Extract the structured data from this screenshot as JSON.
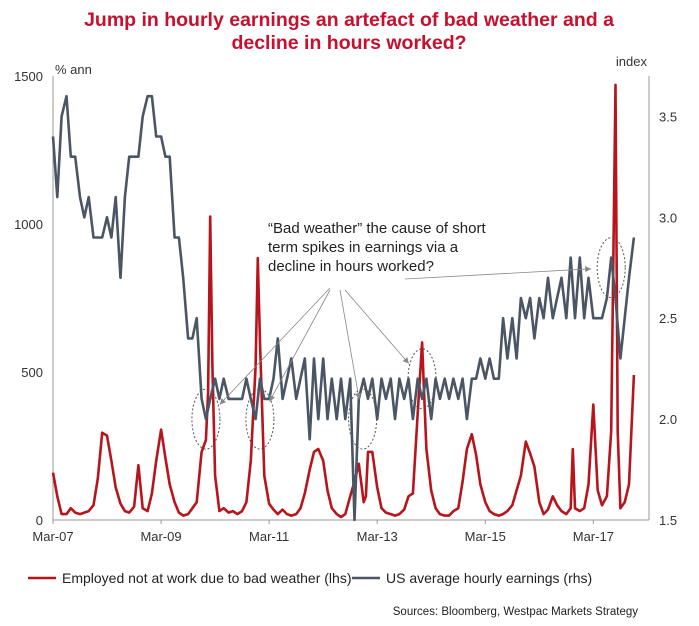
{
  "chart_data": {
    "type": "line",
    "title": "Jump in hourly earnings an artefact of bad weather and a decline in hours worked?",
    "title_lines": [
      "Jump in hourly earnings an artefact of bad weather and a",
      "decline in hours worked?"
    ],
    "title_color": "#C8102E",
    "x_tick_labels": [
      "Mar-07",
      "Mar-09",
      "Mar-11",
      "Mar-13",
      "Mar-15",
      "Mar-17"
    ],
    "x_tick_dates": [
      2007.17,
      2009.17,
      2011.17,
      2013.17,
      2015.17,
      2017.17
    ],
    "xlim": [
      2007.17,
      2018.2
    ],
    "y_left": {
      "unit_label": "% ann",
      "lim": [
        0,
        1500
      ],
      "ticks": [
        0,
        500,
        1000,
        1500
      ]
    },
    "y_right": {
      "unit_label": "index",
      "lim": [
        1.5,
        3.7
      ],
      "ticks": [
        1.5,
        2.0,
        2.5,
        3.0,
        3.5
      ],
      "tick_labels": [
        "1.5",
        "2.0",
        "2.5",
        "3.0",
        "3.5"
      ]
    },
    "grid": false,
    "legend_position": "bottom",
    "series": [
      {
        "name": "Employed not at work due to bad weather (lhs)",
        "axis": "left",
        "color": "#B8141C",
        "points": [
          [
            2007.17,
            160
          ],
          [
            2007.25,
            80
          ],
          [
            2007.33,
            20
          ],
          [
            2007.42,
            20
          ],
          [
            2007.5,
            40
          ],
          [
            2007.58,
            25
          ],
          [
            2007.67,
            20
          ],
          [
            2007.75,
            25
          ],
          [
            2007.83,
            30
          ],
          [
            2007.92,
            50
          ],
          [
            2008.0,
            140
          ],
          [
            2008.08,
            295
          ],
          [
            2008.17,
            285
          ],
          [
            2008.25,
            200
          ],
          [
            2008.33,
            110
          ],
          [
            2008.42,
            55
          ],
          [
            2008.5,
            30
          ],
          [
            2008.58,
            25
          ],
          [
            2008.67,
            45
          ],
          [
            2008.75,
            185
          ],
          [
            2008.83,
            40
          ],
          [
            2008.92,
            30
          ],
          [
            2009.0,
            90
          ],
          [
            2009.08,
            200
          ],
          [
            2009.17,
            305
          ],
          [
            2009.25,
            210
          ],
          [
            2009.33,
            120
          ],
          [
            2009.42,
            60
          ],
          [
            2009.5,
            25
          ],
          [
            2009.58,
            15
          ],
          [
            2009.67,
            20
          ],
          [
            2009.75,
            40
          ],
          [
            2009.83,
            60
          ],
          [
            2009.92,
            230
          ],
          [
            2010.0,
            270
          ],
          [
            2010.04,
            430
          ],
          [
            2010.08,
            1025
          ],
          [
            2010.12,
            520
          ],
          [
            2010.17,
            150
          ],
          [
            2010.25,
            30
          ],
          [
            2010.33,
            40
          ],
          [
            2010.42,
            25
          ],
          [
            2010.5,
            30
          ],
          [
            2010.58,
            20
          ],
          [
            2010.67,
            30
          ],
          [
            2010.75,
            60
          ],
          [
            2010.83,
            200
          ],
          [
            2010.92,
            520
          ],
          [
            2010.96,
            885
          ],
          [
            2011.0,
            600
          ],
          [
            2011.08,
            150
          ],
          [
            2011.17,
            55
          ],
          [
            2011.25,
            35
          ],
          [
            2011.33,
            20
          ],
          [
            2011.42,
            35
          ],
          [
            2011.5,
            20
          ],
          [
            2011.58,
            15
          ],
          [
            2011.67,
            20
          ],
          [
            2011.75,
            40
          ],
          [
            2011.83,
            90
          ],
          [
            2011.92,
            170
          ],
          [
            2012.0,
            230
          ],
          [
            2012.08,
            240
          ],
          [
            2012.17,
            200
          ],
          [
            2012.25,
            100
          ],
          [
            2012.33,
            40
          ],
          [
            2012.42,
            20
          ],
          [
            2012.5,
            10
          ],
          [
            2012.58,
            20
          ],
          [
            2012.67,
            80
          ],
          [
            2012.75,
            130
          ],
          [
            2012.83,
            190
          ],
          [
            2012.92,
            60
          ],
          [
            2012.96,
            80
          ],
          [
            2013.0,
            230
          ],
          [
            2013.08,
            230
          ],
          [
            2013.17,
            110
          ],
          [
            2013.25,
            40
          ],
          [
            2013.33,
            25
          ],
          [
            2013.42,
            20
          ],
          [
            2013.5,
            15
          ],
          [
            2013.58,
            20
          ],
          [
            2013.67,
            35
          ],
          [
            2013.75,
            80
          ],
          [
            2013.83,
            90
          ],
          [
            2013.92,
            360
          ],
          [
            2014.0,
            600
          ],
          [
            2014.04,
            420
          ],
          [
            2014.08,
            240
          ],
          [
            2014.17,
            100
          ],
          [
            2014.25,
            40
          ],
          [
            2014.33,
            20
          ],
          [
            2014.42,
            15
          ],
          [
            2014.5,
            15
          ],
          [
            2014.58,
            30
          ],
          [
            2014.67,
            40
          ],
          [
            2014.75,
            130
          ],
          [
            2014.83,
            240
          ],
          [
            2014.92,
            290
          ],
          [
            2015.0,
            220
          ],
          [
            2015.08,
            120
          ],
          [
            2015.17,
            60
          ],
          [
            2015.25,
            30
          ],
          [
            2015.33,
            20
          ],
          [
            2015.42,
            15
          ],
          [
            2015.5,
            20
          ],
          [
            2015.58,
            30
          ],
          [
            2015.67,
            50
          ],
          [
            2015.75,
            100
          ],
          [
            2015.83,
            150
          ],
          [
            2015.92,
            265
          ],
          [
            2016.0,
            225
          ],
          [
            2016.08,
            180
          ],
          [
            2016.17,
            60
          ],
          [
            2016.25,
            20
          ],
          [
            2016.33,
            35
          ],
          [
            2016.42,
            80
          ],
          [
            2016.5,
            50
          ],
          [
            2016.58,
            30
          ],
          [
            2016.67,
            20
          ],
          [
            2016.75,
            40
          ],
          [
            2016.79,
            240
          ],
          [
            2016.83,
            40
          ],
          [
            2016.92,
            30
          ],
          [
            2017.0,
            40
          ],
          [
            2017.08,
            120
          ],
          [
            2017.17,
            390
          ],
          [
            2017.25,
            100
          ],
          [
            2017.33,
            50
          ],
          [
            2017.42,
            80
          ],
          [
            2017.5,
            300
          ],
          [
            2017.58,
            1470
          ],
          [
            2017.62,
            300
          ],
          [
            2017.67,
            40
          ],
          [
            2017.75,
            60
          ],
          [
            2017.83,
            120
          ],
          [
            2017.92,
            490
          ]
        ]
      },
      {
        "name": "US average hourly earnings (rhs)",
        "axis": "right",
        "color": "#4A5665",
        "points": [
          [
            2007.17,
            3.4
          ],
          [
            2007.25,
            3.1
          ],
          [
            2007.33,
            3.5
          ],
          [
            2007.42,
            3.6
          ],
          [
            2007.5,
            3.3
          ],
          [
            2007.58,
            3.3
          ],
          [
            2007.67,
            3.1
          ],
          [
            2007.75,
            3.0
          ],
          [
            2007.83,
            3.1
          ],
          [
            2007.92,
            2.9
          ],
          [
            2008.0,
            2.9
          ],
          [
            2008.08,
            2.9
          ],
          [
            2008.17,
            3.0
          ],
          [
            2008.25,
            2.9
          ],
          [
            2008.33,
            3.1
          ],
          [
            2008.42,
            2.7
          ],
          [
            2008.5,
            3.1
          ],
          [
            2008.58,
            3.3
          ],
          [
            2008.67,
            3.3
          ],
          [
            2008.75,
            3.3
          ],
          [
            2008.83,
            3.5
          ],
          [
            2008.92,
            3.6
          ],
          [
            2009.0,
            3.6
          ],
          [
            2009.08,
            3.4
          ],
          [
            2009.17,
            3.4
          ],
          [
            2009.25,
            3.3
          ],
          [
            2009.33,
            3.3
          ],
          [
            2009.42,
            2.9
          ],
          [
            2009.5,
            2.9
          ],
          [
            2009.58,
            2.7
          ],
          [
            2009.67,
            2.4
          ],
          [
            2009.75,
            2.4
          ],
          [
            2009.83,
            2.5
          ],
          [
            2009.92,
            2.1
          ],
          [
            2010.0,
            2.0
          ],
          [
            2010.08,
            2.1
          ],
          [
            2010.17,
            2.2
          ],
          [
            2010.25,
            2.1
          ],
          [
            2010.33,
            2.2
          ],
          [
            2010.42,
            2.1
          ],
          [
            2010.5,
            2.1
          ],
          [
            2010.58,
            2.1
          ],
          [
            2010.67,
            2.1
          ],
          [
            2010.75,
            2.2
          ],
          [
            2010.83,
            2.1
          ],
          [
            2010.92,
            2.0
          ],
          [
            2011.0,
            2.2
          ],
          [
            2011.08,
            2.1
          ],
          [
            2011.17,
            2.1
          ],
          [
            2011.25,
            2.2
          ],
          [
            2011.33,
            2.4
          ],
          [
            2011.42,
            2.1
          ],
          [
            2011.5,
            2.2
          ],
          [
            2011.58,
            2.3
          ],
          [
            2011.67,
            2.1
          ],
          [
            2011.75,
            2.2
          ],
          [
            2011.83,
            2.3
          ],
          [
            2011.92,
            1.9
          ],
          [
            2012.0,
            2.3
          ],
          [
            2012.08,
            2.0
          ],
          [
            2012.17,
            2.3
          ],
          [
            2012.25,
            2.0
          ],
          [
            2012.33,
            2.2
          ],
          [
            2012.42,
            2.0
          ],
          [
            2012.5,
            2.2
          ],
          [
            2012.58,
            2.0
          ],
          [
            2012.67,
            2.2
          ],
          [
            2012.75,
            1.5
          ],
          [
            2012.83,
            2.1
          ],
          [
            2012.92,
            2.2
          ],
          [
            2013.0,
            2.1
          ],
          [
            2013.08,
            2.2
          ],
          [
            2013.17,
            2.0
          ],
          [
            2013.25,
            2.2
          ],
          [
            2013.33,
            2.1
          ],
          [
            2013.42,
            2.2
          ],
          [
            2013.5,
            2.0
          ],
          [
            2013.58,
            2.2
          ],
          [
            2013.67,
            2.1
          ],
          [
            2013.75,
            2.2
          ],
          [
            2013.83,
            2.0
          ],
          [
            2013.92,
            2.2
          ],
          [
            2014.0,
            2.1
          ],
          [
            2014.08,
            2.2
          ],
          [
            2014.17,
            2.0
          ],
          [
            2014.25,
            2.2
          ],
          [
            2014.33,
            2.1
          ],
          [
            2014.42,
            2.2
          ],
          [
            2014.5,
            2.1
          ],
          [
            2014.58,
            2.2
          ],
          [
            2014.67,
            2.1
          ],
          [
            2014.75,
            2.2
          ],
          [
            2014.83,
            2.0
          ],
          [
            2014.92,
            2.2
          ],
          [
            2015.0,
            2.2
          ],
          [
            2015.08,
            2.3
          ],
          [
            2015.17,
            2.2
          ],
          [
            2015.25,
            2.3
          ],
          [
            2015.33,
            2.2
          ],
          [
            2015.42,
            2.2
          ],
          [
            2015.5,
            2.5
          ],
          [
            2015.58,
            2.3
          ],
          [
            2015.67,
            2.5
          ],
          [
            2015.75,
            2.3
          ],
          [
            2015.83,
            2.6
          ],
          [
            2015.92,
            2.5
          ],
          [
            2016.0,
            2.6
          ],
          [
            2016.08,
            2.4
          ],
          [
            2016.17,
            2.6
          ],
          [
            2016.25,
            2.5
          ],
          [
            2016.33,
            2.7
          ],
          [
            2016.42,
            2.5
          ],
          [
            2016.5,
            2.6
          ],
          [
            2016.58,
            2.7
          ],
          [
            2016.67,
            2.5
          ],
          [
            2016.75,
            2.8
          ],
          [
            2016.83,
            2.5
          ],
          [
            2016.92,
            2.8
          ],
          [
            2017.0,
            2.5
          ],
          [
            2017.08,
            2.7
          ],
          [
            2017.17,
            2.5
          ],
          [
            2017.25,
            2.5
          ],
          [
            2017.33,
            2.5
          ],
          [
            2017.42,
            2.6
          ],
          [
            2017.5,
            2.8
          ],
          [
            2017.58,
            2.6
          ],
          [
            2017.67,
            2.3
          ],
          [
            2017.75,
            2.5
          ],
          [
            2017.83,
            2.7
          ],
          [
            2017.92,
            2.9
          ]
        ]
      }
    ],
    "annotation": {
      "lines": [
        "“Bad weather” the cause of short",
        "term spikes in earnings via a",
        "decline in hours worked?"
      ],
      "targets": [
        [
          2010.0,
          2.0
        ],
        [
          2011.0,
          2.0
        ],
        [
          2012.9,
          2.0
        ],
        [
          2014.0,
          2.2
        ],
        [
          2017.5,
          2.75
        ]
      ]
    },
    "source": "Sources: Bloomberg, Westpac Markets Strategy"
  }
}
